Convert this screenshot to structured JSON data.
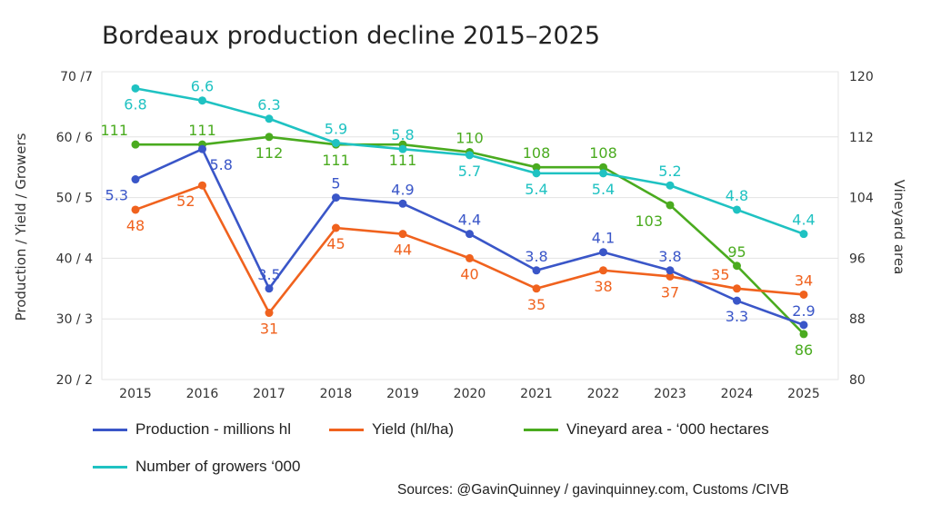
{
  "chart_data": {
    "type": "line",
    "title": "Bordeaux production decline 2015–2025",
    "xlabel": "",
    "ylabel": "Production / Yield / Growers",
    "y2label": "Vineyard area",
    "categories": [
      "2015",
      "2016",
      "2017",
      "2018",
      "2019",
      "2020",
      "2021",
      "2022",
      "2023",
      "2024",
      "2025"
    ],
    "ylim": [
      20,
      70
    ],
    "y2lim": [
      80,
      120
    ],
    "yticks": [
      {
        "value": 70,
        "label": "70 /7"
      },
      {
        "value": 60,
        "label": "60 / 6"
      },
      {
        "value": 50,
        "label": "50 / 5"
      },
      {
        "value": 40,
        "label": "40 / 4"
      },
      {
        "value": 30,
        "label": "30 / 3"
      },
      {
        "value": 20,
        "label": "20 / 2"
      }
    ],
    "y2ticks": [
      "120",
      "112",
      "104",
      "96",
      "88",
      "80"
    ],
    "grid": true,
    "legend_position": "bottom",
    "series": [
      {
        "name": "Production - millions hl",
        "color": "#3a56c8",
        "axis": "left",
        "scale": 10,
        "values": [
          5.3,
          5.8,
          3.5,
          5,
          4.9,
          4.4,
          3.8,
          4.1,
          3.8,
          3.3,
          2.9
        ],
        "labels": [
          "5.3",
          "5.8",
          "3.5",
          "5",
          "4.9",
          "4.4",
          "3.8",
          "4.1",
          "3.8",
          "3.3",
          "2.9"
        ],
        "label_pos": [
          "below-left",
          "below-right",
          "above",
          "above",
          "above",
          "above",
          "above",
          "above",
          "above",
          "below",
          "above"
        ]
      },
      {
        "name": "Yield (hl/ha)",
        "color": "#f0621e",
        "axis": "left",
        "scale": 1,
        "values": [
          48,
          52,
          31,
          45,
          44,
          40,
          35,
          38,
          37,
          35,
          34
        ],
        "labels": [
          "48",
          "52",
          "31",
          "45",
          "44",
          "40",
          "35",
          "38",
          "37",
          "35",
          "34"
        ],
        "label_pos": [
          "below",
          "below-left",
          "below",
          "below",
          "below",
          "below",
          "below",
          "below",
          "below",
          "above-left",
          "above"
        ]
      },
      {
        "name": "Vineyard area - ‘000 hectares",
        "color": "#4aab1f",
        "axis": "right",
        "scale": 1,
        "values": [
          111,
          111,
          112,
          111,
          111,
          110,
          108,
          108,
          103,
          95,
          86
        ],
        "labels": [
          "111",
          "111",
          "112",
          "111",
          "111",
          "110",
          "108",
          "108",
          "103",
          "95",
          "86"
        ],
        "label_pos": [
          "above-left",
          "above",
          "below",
          "below",
          "below",
          "above",
          "above",
          "above",
          "below-left",
          "above",
          "below"
        ]
      },
      {
        "name": "Number of growers ‘000",
        "color": "#1fc2c2",
        "axis": "left",
        "scale": 10,
        "values": [
          6.8,
          6.6,
          6.3,
          5.9,
          5.8,
          5.7,
          5.4,
          5.4,
          5.2,
          4.8,
          4.4
        ],
        "labels": [
          "6.8",
          "6.6",
          "6.3",
          "5.9",
          "5.8",
          "5.7",
          "5.4",
          "5.4",
          "5.2",
          "4.8",
          "4.4"
        ],
        "label_pos": [
          "below",
          "above",
          "above",
          "above",
          "above",
          "below",
          "below",
          "below",
          "above",
          "above",
          "above"
        ]
      }
    ]
  },
  "source": "Sources: @GavinQuinney / gavinquinney.com, Customs /CIVB"
}
